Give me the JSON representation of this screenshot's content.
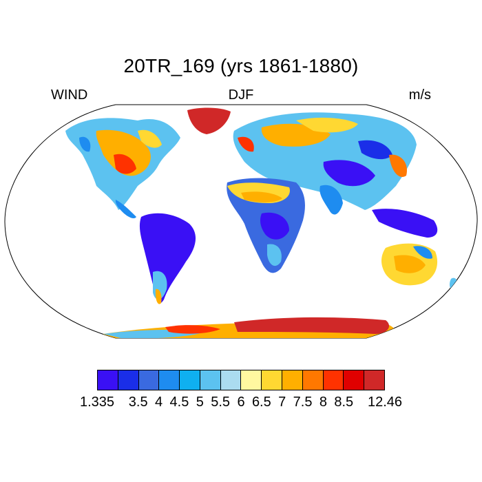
{
  "title": "20TR_169 (yrs 1861-1880)",
  "left_label": "WIND",
  "center_label": "DJF",
  "right_label": "m/s",
  "colorbar": {
    "colors": [
      "#3a10f5",
      "#1a2ee8",
      "#3a6ae0",
      "#1e8cf0",
      "#0fb0f0",
      "#5cc2f0",
      "#abdcf0",
      "#fff8a0",
      "#ffd832",
      "#ffaf00",
      "#ff7800",
      "#ff3200",
      "#e00000",
      "#d02828"
    ],
    "tick_labels": [
      "1.335",
      "3.5",
      "4",
      "4.5",
      "5",
      "5.5",
      "6",
      "6.5",
      "7",
      "7.5",
      "8",
      "8.5",
      "12.46"
    ]
  }
}
